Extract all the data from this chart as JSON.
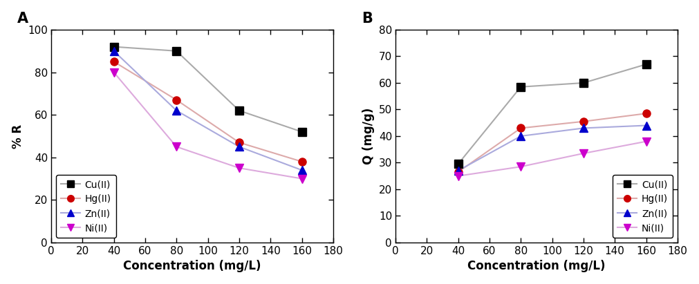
{
  "x": [
    40,
    80,
    120,
    160
  ],
  "panel_A": {
    "title": "A",
    "ylabel": "% R",
    "xlabel": "Concentration (mg/L)",
    "xlim": [
      0,
      180
    ],
    "ylim": [
      0,
      100
    ],
    "xticks": [
      0,
      20,
      40,
      60,
      80,
      100,
      120,
      140,
      160,
      180
    ],
    "yticks": [
      0,
      20,
      40,
      60,
      80,
      100
    ],
    "series": [
      {
        "label": "Cu(II)",
        "line_color": "#aaaaaa",
        "marker_color": "#000000",
        "marker": "s",
        "values": [
          92,
          90,
          62,
          52
        ]
      },
      {
        "label": "Hg(II)",
        "line_color": "#ddaaaa",
        "marker_color": "#cc0000",
        "marker": "o",
        "values": [
          85,
          67,
          47,
          38
        ]
      },
      {
        "label": "Zn(II)",
        "line_color": "#aaaadd",
        "marker_color": "#0000cc",
        "marker": "^",
        "values": [
          90,
          62,
          45,
          34
        ]
      },
      {
        "label": "Ni(II)",
        "line_color": "#ddaadd",
        "marker_color": "#cc00cc",
        "marker": "v",
        "values": [
          80,
          45,
          35,
          30
        ]
      }
    ]
  },
  "panel_B": {
    "title": "B",
    "ylabel": "Q (mg/g)",
    "xlabel": "Concentration (mg/L)",
    "xlim": [
      0,
      180
    ],
    "ylim": [
      0,
      80
    ],
    "xticks": [
      0,
      20,
      40,
      60,
      80,
      100,
      120,
      140,
      160,
      180
    ],
    "yticks": [
      0,
      10,
      20,
      30,
      40,
      50,
      60,
      70,
      80
    ],
    "series": [
      {
        "label": "Cu(II)",
        "line_color": "#aaaaaa",
        "marker_color": "#000000",
        "marker": "s",
        "values": [
          29.5,
          58.5,
          60,
          67
        ]
      },
      {
        "label": "Hg(II)",
        "line_color": "#ddaaaa",
        "marker_color": "#cc0000",
        "marker": "o",
        "values": [
          26.5,
          43,
          45.5,
          48.5
        ]
      },
      {
        "label": "Zn(II)",
        "line_color": "#aaaadd",
        "marker_color": "#0000cc",
        "marker": "^",
        "values": [
          27,
          40,
          43,
          44
        ]
      },
      {
        "label": "Ni(II)",
        "line_color": "#ddaadd",
        "marker_color": "#cc00cc",
        "marker": "v",
        "values": [
          25,
          28.5,
          33.5,
          38
        ]
      }
    ]
  },
  "marker_size": 8,
  "linewidth": 1.5,
  "legend_fontsize": 10,
  "tick_fontsize": 11,
  "label_fontsize": 12,
  "title_fontsize": 15,
  "title_fontweight": "bold"
}
